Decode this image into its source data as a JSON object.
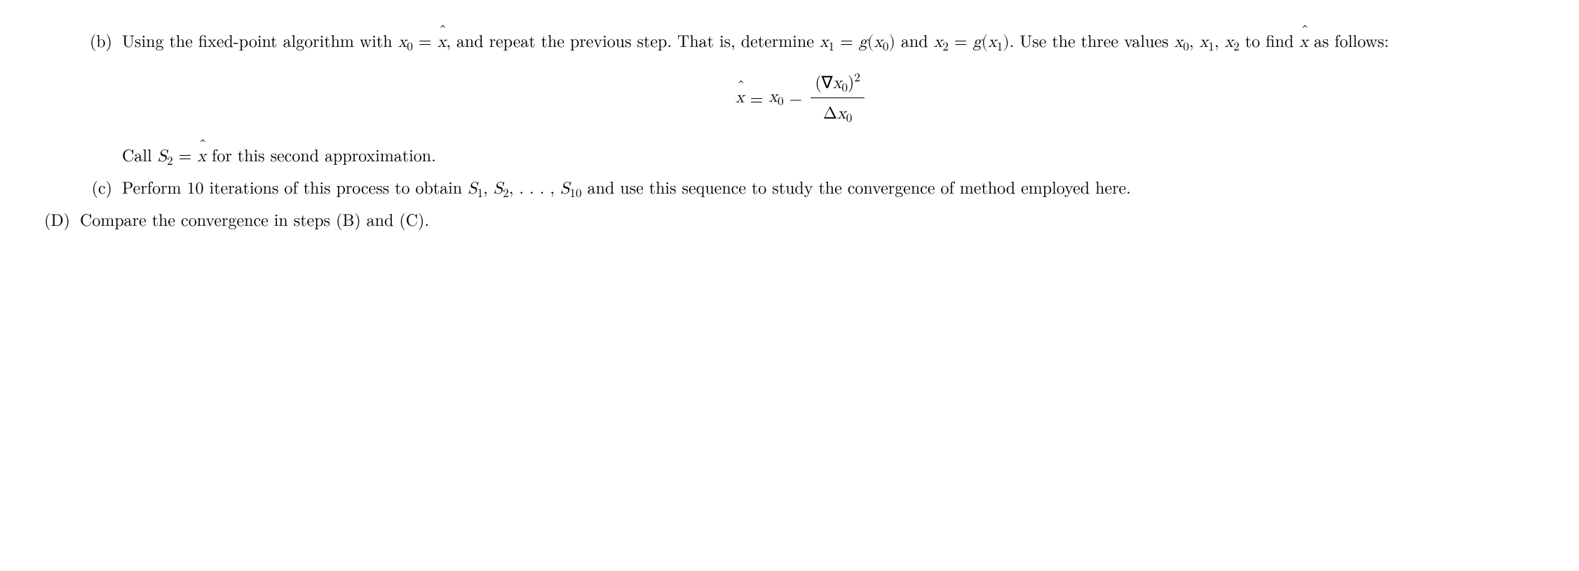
{
  "items": {
    "b": {
      "label": "(b)",
      "text_pre": "Using the fixed-point algorithm with ",
      "eq1_lhs_var": "x",
      "eq1_lhs_sub": "0",
      "eq1_op": " = ",
      "eq1_rhs_hat": "x",
      "text_mid1": ", and repeat the previous step. That is, determine ",
      "eq2": "x",
      "eq2_sub": "1",
      "eq2_op": " = ",
      "eq2_g": "g",
      "eq2_paren_open": "(",
      "eq2_arg": "x",
      "eq2_arg_sub": "0",
      "eq2_paren_close": ")",
      "text_and": " and ",
      "eq3": "x",
      "eq3_sub": "2",
      "eq3_op": " = ",
      "eq3_g": "g",
      "eq3_paren_open": "(",
      "eq3_arg": "x",
      "eq3_arg_sub": "1",
      "eq3_paren_close": ")",
      "text_mid2": ". Use the three values ",
      "vals": "x",
      "vals_s0": "0",
      "vals_c1": ", ",
      "vals_s1": "1",
      "vals_c2": ", ",
      "vals_s2": "2",
      "text_mid3": " to find ",
      "hat2": "x",
      "text_end": " as follows:",
      "formula": {
        "lhs_hat": "x",
        "eq": " = ",
        "x0": "x",
        "x0_sub": "0",
        "minus": " − ",
        "num_nabla": "∇",
        "num_x": "x",
        "num_sub": "0",
        "num_sup": "2",
        "den_delta": "Δ",
        "den_x": "x",
        "den_sub": "0"
      },
      "call_pre": "Call ",
      "call_S": "S",
      "call_S_sub": "2",
      "call_op": " = ",
      "call_hat": "x",
      "call_post": " for this second approximation."
    },
    "c": {
      "label": "(c)",
      "text_pre": "Perform 10 iterations of this process to obtain ",
      "S": "S",
      "s1": "1",
      "c1": ", ",
      "s2": "2",
      "c2": ", . . . , ",
      "s10": "10",
      "text_post": " and use this sequence to study the convergence of method employed here."
    },
    "D": {
      "label": "(D)",
      "text": "Compare the convergence in steps (B) and (C)."
    }
  }
}
